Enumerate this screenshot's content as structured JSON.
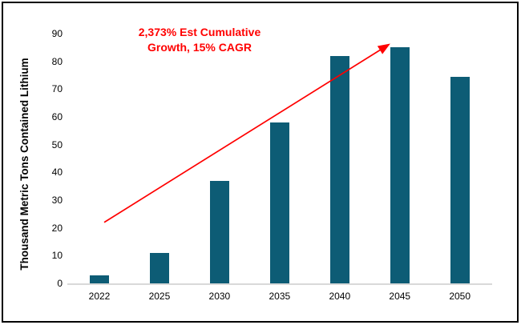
{
  "chart_data": {
    "type": "bar",
    "title": "",
    "xlabel": "",
    "ylabel": "Thousand Metric Tons Contained Lithium",
    "categories": [
      "2022",
      "2025",
      "2030",
      "2035",
      "2040",
      "2045",
      "2050"
    ],
    "values": [
      3,
      11,
      37,
      58,
      82,
      85,
      74.5
    ],
    "ylim": [
      0,
      90
    ],
    "yticks": [
      0,
      10,
      20,
      30,
      40,
      50,
      60,
      70,
      80,
      90
    ],
    "grid": false,
    "legend": "none",
    "bar_color": "#0D5C75",
    "axis_line_color": "#D9D9D9",
    "frame_color": "#000000",
    "annotation": {
      "text_line1": "2,373% Est Cumulative",
      "text_line2": "Growth, 15% CAGR",
      "color": "#FF0000",
      "arrow": {
        "from": {
          "category": "2022",
          "value": 22
        },
        "to": {
          "category": "2045",
          "value": 86
        }
      }
    }
  }
}
